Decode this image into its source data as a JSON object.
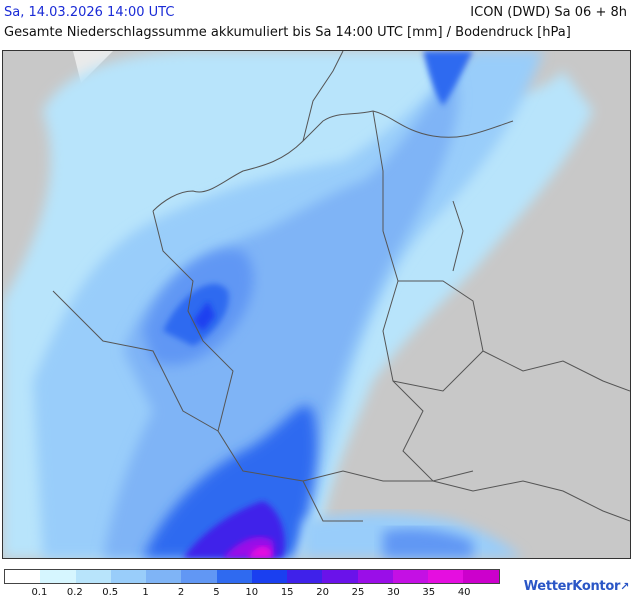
{
  "header": {
    "timestamp": "Sa, 14.03.2026 14:00 UTC",
    "model": "ICON (DWD) Sa 06 + 8h",
    "subtitle": "Gesamte Niederschlagssumme akkumuliert bis Sa 14:00 UTC [mm] / Bodendruck [hPa]"
  },
  "legend": {
    "colors": [
      "#ffffff",
      "#d6f6ff",
      "#b8e4fb",
      "#99cdfa",
      "#7fb4f6",
      "#6197f4",
      "#2f6af0",
      "#1a3ff0",
      "#3f21ea",
      "#6a12ea",
      "#9a0ee8",
      "#c410e4",
      "#e50ee0",
      "#cc00cc"
    ],
    "labels": [
      "0.1",
      "0.2",
      "0.5",
      "1",
      "2",
      "5",
      "10",
      "15",
      "20",
      "25",
      "30",
      "35",
      "40"
    ]
  },
  "logo": {
    "text": "WetterKontor"
  },
  "map": {
    "ocean_color": "#eaeaea",
    "land_color": "#c8c8c8",
    "border_color": "#555555"
  }
}
